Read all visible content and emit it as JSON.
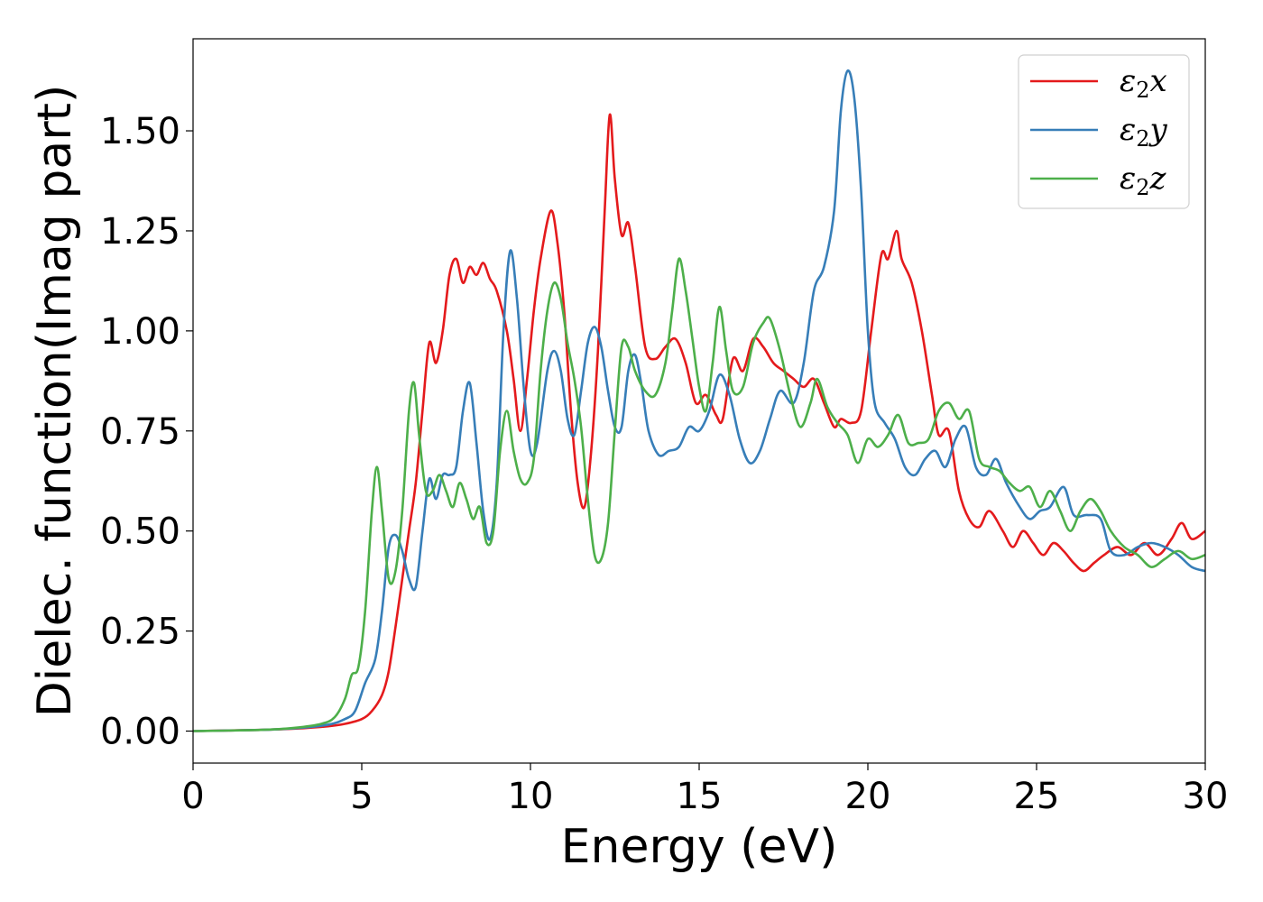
{
  "chart_data": {
    "type": "line",
    "xlabel": "Energy (eV)",
    "ylabel": "Dielec. function(Imag part)",
    "xlim": [
      0,
      30
    ],
    "ylim": [
      -0.08,
      1.73
    ],
    "xticks": [
      0,
      5,
      10,
      15,
      20,
      25,
      30
    ],
    "xtick_labels": [
      "0",
      "5",
      "10",
      "15",
      "20",
      "25",
      "30"
    ],
    "yticks": [
      0.0,
      0.25,
      0.5,
      0.75,
      1.0,
      1.25,
      1.5
    ],
    "ytick_labels": [
      "0.00",
      "0.25",
      "0.50",
      "0.75",
      "1.00",
      "1.25",
      "1.50"
    ],
    "grid": false,
    "legend_position": "top-right",
    "series": [
      {
        "name": "ε2x",
        "legend_base": "ε",
        "legend_sub": "2",
        "legend_tail": "x",
        "color": "#e41a1c",
        "points": [
          [
            0,
            0
          ],
          [
            2,
            0.003
          ],
          [
            3,
            0.006
          ],
          [
            4,
            0.012
          ],
          [
            4.5,
            0.018
          ],
          [
            5,
            0.03
          ],
          [
            5.3,
            0.05
          ],
          [
            5.6,
            0.09
          ],
          [
            5.8,
            0.15
          ],
          [
            6,
            0.26
          ],
          [
            6.2,
            0.38
          ],
          [
            6.4,
            0.5
          ],
          [
            6.6,
            0.62
          ],
          [
            6.8,
            0.8
          ],
          [
            7.0,
            0.97
          ],
          [
            7.2,
            0.92
          ],
          [
            7.4,
            1.0
          ],
          [
            7.6,
            1.14
          ],
          [
            7.8,
            1.18
          ],
          [
            8.0,
            1.12
          ],
          [
            8.2,
            1.16
          ],
          [
            8.4,
            1.14
          ],
          [
            8.6,
            1.17
          ],
          [
            8.8,
            1.13
          ],
          [
            9.0,
            1.1
          ],
          [
            9.3,
            1.0
          ],
          [
            9.5,
            0.88
          ],
          [
            9.7,
            0.75
          ],
          [
            9.9,
            0.88
          ],
          [
            10.1,
            1.05
          ],
          [
            10.3,
            1.18
          ],
          [
            10.6,
            1.3
          ],
          [
            10.8,
            1.22
          ],
          [
            11.0,
            1.05
          ],
          [
            11.2,
            0.8
          ],
          [
            11.4,
            0.62
          ],
          [
            11.6,
            0.56
          ],
          [
            11.8,
            0.7
          ],
          [
            12.0,
            0.95
          ],
          [
            12.2,
            1.3
          ],
          [
            12.35,
            1.54
          ],
          [
            12.5,
            1.38
          ],
          [
            12.7,
            1.24
          ],
          [
            12.9,
            1.27
          ],
          [
            13.1,
            1.16
          ],
          [
            13.4,
            0.96
          ],
          [
            13.7,
            0.93
          ],
          [
            14.0,
            0.96
          ],
          [
            14.3,
            0.98
          ],
          [
            14.6,
            0.92
          ],
          [
            14.9,
            0.82
          ],
          [
            15.2,
            0.84
          ],
          [
            15.5,
            0.79
          ],
          [
            15.7,
            0.78
          ],
          [
            16.0,
            0.93
          ],
          [
            16.3,
            0.9
          ],
          [
            16.6,
            0.98
          ],
          [
            16.9,
            0.96
          ],
          [
            17.2,
            0.92
          ],
          [
            17.5,
            0.9
          ],
          [
            17.8,
            0.88
          ],
          [
            18.1,
            0.86
          ],
          [
            18.4,
            0.88
          ],
          [
            18.7,
            0.82
          ],
          [
            19.0,
            0.76
          ],
          [
            19.2,
            0.78
          ],
          [
            19.5,
            0.77
          ],
          [
            19.8,
            0.8
          ],
          [
            20.1,
            1.0
          ],
          [
            20.4,
            1.19
          ],
          [
            20.6,
            1.18
          ],
          [
            20.85,
            1.25
          ],
          [
            21.0,
            1.18
          ],
          [
            21.3,
            1.12
          ],
          [
            21.6,
            1.0
          ],
          [
            21.9,
            0.84
          ],
          [
            22.1,
            0.74
          ],
          [
            22.4,
            0.75
          ],
          [
            22.7,
            0.6
          ],
          [
            23.0,
            0.53
          ],
          [
            23.3,
            0.51
          ],
          [
            23.6,
            0.55
          ],
          [
            24.0,
            0.5
          ],
          [
            24.3,
            0.46
          ],
          [
            24.6,
            0.5
          ],
          [
            24.9,
            0.47
          ],
          [
            25.2,
            0.44
          ],
          [
            25.5,
            0.47
          ],
          [
            25.8,
            0.45
          ],
          [
            26.1,
            0.42
          ],
          [
            26.4,
            0.4
          ],
          [
            26.7,
            0.42
          ],
          [
            27.0,
            0.44
          ],
          [
            27.4,
            0.46
          ],
          [
            27.8,
            0.44
          ],
          [
            28.2,
            0.47
          ],
          [
            28.6,
            0.44
          ],
          [
            29.0,
            0.48
          ],
          [
            29.3,
            0.52
          ],
          [
            29.6,
            0.48
          ],
          [
            30.0,
            0.5
          ]
        ]
      },
      {
        "name": "ε2y",
        "legend_base": "ε",
        "legend_sub": "2",
        "legend_tail": "y",
        "color": "#377eb8",
        "points": [
          [
            0,
            0
          ],
          [
            2,
            0.003
          ],
          [
            3,
            0.007
          ],
          [
            4,
            0.016
          ],
          [
            4.5,
            0.03
          ],
          [
            4.8,
            0.05
          ],
          [
            5.1,
            0.12
          ],
          [
            5.4,
            0.18
          ],
          [
            5.6,
            0.3
          ],
          [
            5.8,
            0.46
          ],
          [
            6.0,
            0.49
          ],
          [
            6.2,
            0.45
          ],
          [
            6.4,
            0.38
          ],
          [
            6.6,
            0.36
          ],
          [
            6.8,
            0.5
          ],
          [
            7.0,
            0.63
          ],
          [
            7.2,
            0.58
          ],
          [
            7.4,
            0.64
          ],
          [
            7.6,
            0.64
          ],
          [
            7.8,
            0.66
          ],
          [
            8.0,
            0.8
          ],
          [
            8.2,
            0.87
          ],
          [
            8.4,
            0.72
          ],
          [
            8.6,
            0.55
          ],
          [
            8.8,
            0.48
          ],
          [
            9.0,
            0.62
          ],
          [
            9.2,
            1.0
          ],
          [
            9.4,
            1.2
          ],
          [
            9.6,
            1.08
          ],
          [
            9.8,
            0.86
          ],
          [
            10.0,
            0.7
          ],
          [
            10.2,
            0.72
          ],
          [
            10.5,
            0.9
          ],
          [
            10.7,
            0.95
          ],
          [
            10.9,
            0.9
          ],
          [
            11.1,
            0.78
          ],
          [
            11.3,
            0.74
          ],
          [
            11.5,
            0.85
          ],
          [
            11.7,
            0.97
          ],
          [
            11.9,
            1.01
          ],
          [
            12.1,
            0.96
          ],
          [
            12.3,
            0.85
          ],
          [
            12.5,
            0.76
          ],
          [
            12.7,
            0.76
          ],
          [
            12.9,
            0.9
          ],
          [
            13.1,
            0.94
          ],
          [
            13.3,
            0.86
          ],
          [
            13.5,
            0.75
          ],
          [
            13.8,
            0.69
          ],
          [
            14.1,
            0.7
          ],
          [
            14.4,
            0.71
          ],
          [
            14.7,
            0.76
          ],
          [
            15.0,
            0.75
          ],
          [
            15.3,
            0.8
          ],
          [
            15.6,
            0.89
          ],
          [
            15.9,
            0.84
          ],
          [
            16.2,
            0.73
          ],
          [
            16.5,
            0.67
          ],
          [
            16.8,
            0.7
          ],
          [
            17.1,
            0.78
          ],
          [
            17.4,
            0.85
          ],
          [
            17.8,
            0.82
          ],
          [
            18.1,
            0.92
          ],
          [
            18.4,
            1.1
          ],
          [
            18.7,
            1.16
          ],
          [
            19.0,
            1.3
          ],
          [
            19.2,
            1.55
          ],
          [
            19.4,
            1.65
          ],
          [
            19.6,
            1.58
          ],
          [
            19.8,
            1.35
          ],
          [
            20.0,
            1.0
          ],
          [
            20.2,
            0.82
          ],
          [
            20.5,
            0.77
          ],
          [
            20.8,
            0.73
          ],
          [
            21.1,
            0.66
          ],
          [
            21.4,
            0.64
          ],
          [
            21.7,
            0.68
          ],
          [
            22.0,
            0.7
          ],
          [
            22.3,
            0.66
          ],
          [
            22.6,
            0.73
          ],
          [
            22.9,
            0.76
          ],
          [
            23.2,
            0.66
          ],
          [
            23.5,
            0.64
          ],
          [
            23.8,
            0.68
          ],
          [
            24.1,
            0.62
          ],
          [
            24.5,
            0.56
          ],
          [
            24.8,
            0.53
          ],
          [
            25.1,
            0.55
          ],
          [
            25.4,
            0.56
          ],
          [
            25.8,
            0.61
          ],
          [
            26.1,
            0.54
          ],
          [
            26.5,
            0.54
          ],
          [
            26.9,
            0.53
          ],
          [
            27.2,
            0.45
          ],
          [
            27.6,
            0.44
          ],
          [
            28.0,
            0.46
          ],
          [
            28.4,
            0.47
          ],
          [
            28.8,
            0.46
          ],
          [
            29.2,
            0.44
          ],
          [
            29.6,
            0.41
          ],
          [
            30.0,
            0.4
          ]
        ]
      },
      {
        "name": "ε2z",
        "legend_base": "ε",
        "legend_sub": "2",
        "legend_tail": "z",
        "color": "#4daf4a",
        "points": [
          [
            0,
            0
          ],
          [
            2,
            0.003
          ],
          [
            3,
            0.008
          ],
          [
            3.8,
            0.018
          ],
          [
            4.2,
            0.035
          ],
          [
            4.5,
            0.08
          ],
          [
            4.7,
            0.14
          ],
          [
            4.9,
            0.16
          ],
          [
            5.1,
            0.3
          ],
          [
            5.3,
            0.55
          ],
          [
            5.45,
            0.66
          ],
          [
            5.6,
            0.55
          ],
          [
            5.8,
            0.38
          ],
          [
            6.0,
            0.4
          ],
          [
            6.2,
            0.55
          ],
          [
            6.4,
            0.8
          ],
          [
            6.55,
            0.87
          ],
          [
            6.7,
            0.74
          ],
          [
            6.9,
            0.6
          ],
          [
            7.1,
            0.6
          ],
          [
            7.3,
            0.64
          ],
          [
            7.5,
            0.6
          ],
          [
            7.7,
            0.56
          ],
          [
            7.9,
            0.62
          ],
          [
            8.1,
            0.58
          ],
          [
            8.3,
            0.53
          ],
          [
            8.5,
            0.56
          ],
          [
            8.7,
            0.47
          ],
          [
            8.9,
            0.5
          ],
          [
            9.1,
            0.7
          ],
          [
            9.3,
            0.8
          ],
          [
            9.5,
            0.7
          ],
          [
            9.7,
            0.63
          ],
          [
            9.9,
            0.62
          ],
          [
            10.1,
            0.68
          ],
          [
            10.3,
            0.9
          ],
          [
            10.5,
            1.05
          ],
          [
            10.7,
            1.12
          ],
          [
            10.9,
            1.08
          ],
          [
            11.1,
            0.97
          ],
          [
            11.3,
            0.88
          ],
          [
            11.5,
            0.76
          ],
          [
            11.7,
            0.58
          ],
          [
            11.9,
            0.44
          ],
          [
            12.1,
            0.43
          ],
          [
            12.3,
            0.52
          ],
          [
            12.5,
            0.75
          ],
          [
            12.7,
            0.96
          ],
          [
            12.9,
            0.96
          ],
          [
            13.1,
            0.9
          ],
          [
            13.4,
            0.85
          ],
          [
            13.7,
            0.84
          ],
          [
            14.0,
            0.92
          ],
          [
            14.2,
            1.05
          ],
          [
            14.4,
            1.18
          ],
          [
            14.6,
            1.1
          ],
          [
            14.8,
            0.98
          ],
          [
            15.0,
            0.86
          ],
          [
            15.2,
            0.8
          ],
          [
            15.4,
            0.92
          ],
          [
            15.6,
            1.06
          ],
          [
            15.8,
            0.95
          ],
          [
            16.0,
            0.85
          ],
          [
            16.3,
            0.86
          ],
          [
            16.6,
            0.97
          ],
          [
            16.9,
            1.02
          ],
          [
            17.1,
            1.03
          ],
          [
            17.4,
            0.95
          ],
          [
            17.7,
            0.84
          ],
          [
            18.0,
            0.76
          ],
          [
            18.3,
            0.82
          ],
          [
            18.5,
            0.88
          ],
          [
            18.8,
            0.81
          ],
          [
            19.1,
            0.77
          ],
          [
            19.4,
            0.74
          ],
          [
            19.7,
            0.67
          ],
          [
            20.0,
            0.73
          ],
          [
            20.3,
            0.71
          ],
          [
            20.6,
            0.74
          ],
          [
            20.9,
            0.79
          ],
          [
            21.2,
            0.72
          ],
          [
            21.5,
            0.72
          ],
          [
            21.8,
            0.73
          ],
          [
            22.1,
            0.8
          ],
          [
            22.4,
            0.82
          ],
          [
            22.7,
            0.78
          ],
          [
            23.0,
            0.8
          ],
          [
            23.3,
            0.68
          ],
          [
            23.6,
            0.66
          ],
          [
            23.9,
            0.65
          ],
          [
            24.2,
            0.62
          ],
          [
            24.5,
            0.6
          ],
          [
            24.8,
            0.61
          ],
          [
            25.1,
            0.56
          ],
          [
            25.4,
            0.6
          ],
          [
            25.7,
            0.55
          ],
          [
            26.0,
            0.5
          ],
          [
            26.3,
            0.55
          ],
          [
            26.6,
            0.58
          ],
          [
            26.9,
            0.55
          ],
          [
            27.2,
            0.5
          ],
          [
            27.6,
            0.46
          ],
          [
            28.0,
            0.44
          ],
          [
            28.4,
            0.41
          ],
          [
            28.8,
            0.43
          ],
          [
            29.2,
            0.45
          ],
          [
            29.6,
            0.43
          ],
          [
            30.0,
            0.44
          ]
        ]
      }
    ]
  }
}
